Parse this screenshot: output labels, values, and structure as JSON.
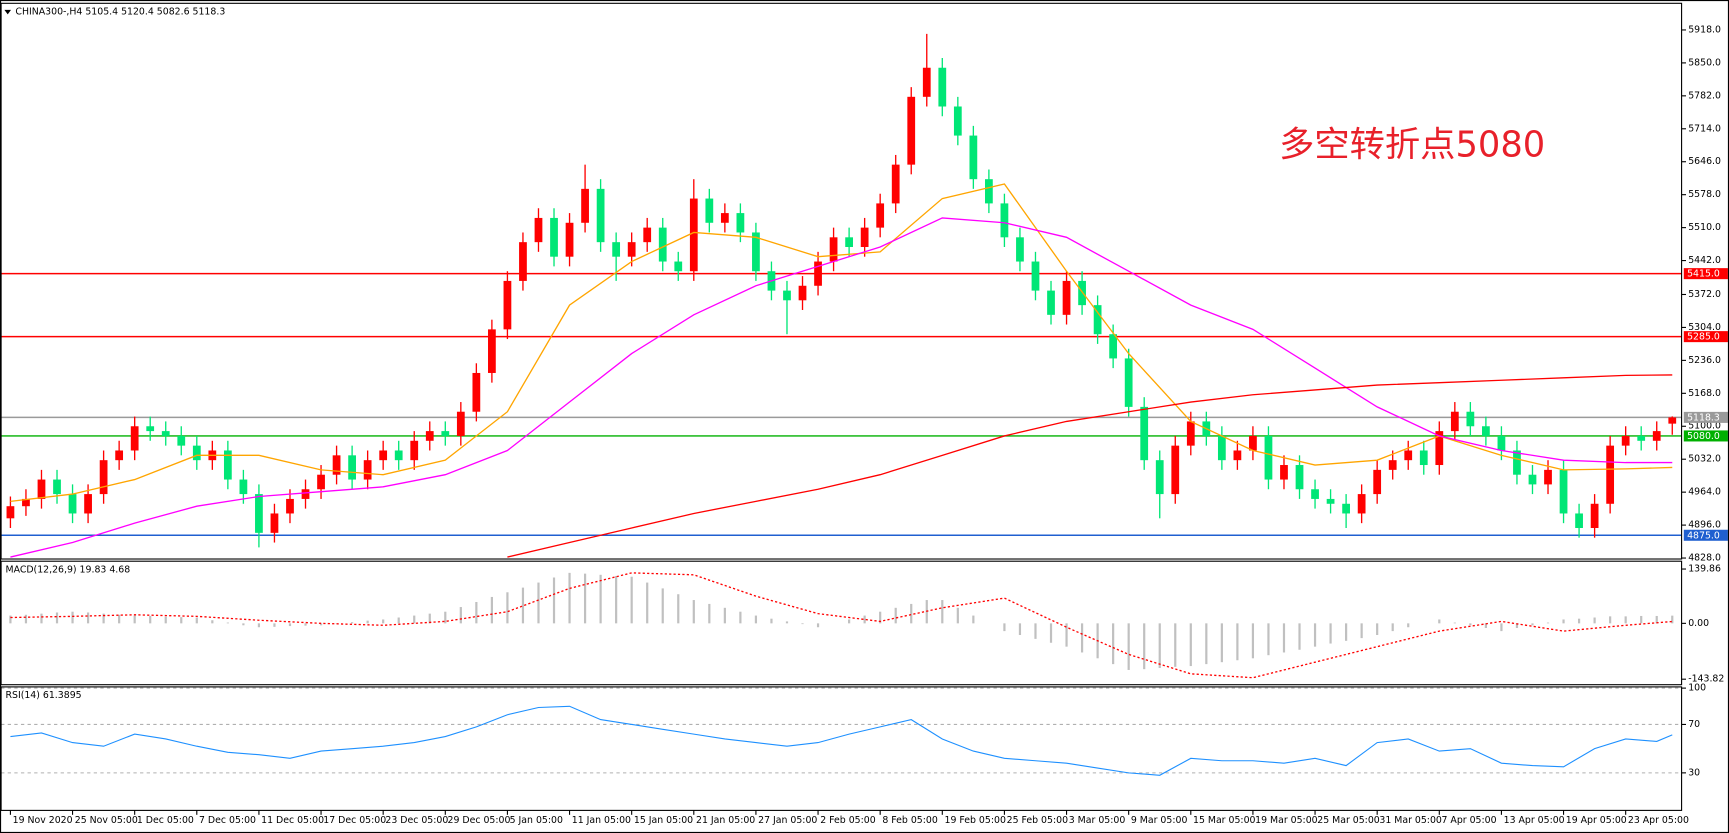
{
  "chart_data": [
    {
      "type": "candlestick",
      "title": "CHINA300-,H4  5105.4 5120.4 5082.6 5118.3",
      "annotation": "多空转折点5080",
      "xlim": [
        -0.6,
        107.6
      ],
      "ylim": [
        4826,
        5973
      ],
      "yticks": [
        {
          "value": 4828,
          "label": "4828.0"
        },
        {
          "value": 4896,
          "label": "4896.0"
        },
        {
          "value": 4964,
          "label": "4964.0"
        },
        {
          "value": 5032,
          "label": "5032.0"
        },
        {
          "value": 5100,
          "label": "5100.0"
        },
        {
          "value": 5168,
          "label": "5168.0"
        },
        {
          "value": 5236,
          "label": "5236.0"
        },
        {
          "value": 5304,
          "label": "5304.0"
        },
        {
          "value": 5372,
          "label": "5372.0"
        },
        {
          "value": 5442,
          "label": "5442.0"
        },
        {
          "value": 5510,
          "label": "5510.0"
        },
        {
          "value": 5578,
          "label": "5578.0"
        },
        {
          "value": 5646,
          "label": "5646.0"
        },
        {
          "value": 5714,
          "label": "5714.0"
        },
        {
          "value": 5782,
          "label": "5782.0"
        },
        {
          "value": 5850,
          "label": "5850.0"
        },
        {
          "value": 5918,
          "label": "5918.0"
        }
      ],
      "grid": false,
      "up_color": "#ff0000",
      "down_color": "#00e676",
      "open": [
        4910,
        4935,
        4950,
        4990,
        4960,
        4920,
        4960,
        5030,
        5050,
        5100,
        5090,
        5080,
        5060,
        5030,
        5050,
        4990,
        4960,
        4880,
        4920,
        4950,
        4970,
        5000,
        5040,
        4990,
        5030,
        5050,
        5030,
        5070,
        5090,
        5080,
        5130,
        5210,
        5300,
        5400,
        5480,
        5530,
        5450,
        5520,
        5590,
        5480,
        5450,
        5480,
        5510,
        5440,
        5420,
        5570,
        5520,
        5540,
        5500,
        5420,
        5380,
        5360,
        5390,
        5440,
        5490,
        5470,
        5510,
        5560,
        5640,
        5780,
        5840,
        5760,
        5700,
        5610,
        5560,
        5490,
        5440,
        5380,
        5330,
        5400,
        5350,
        5290,
        5240,
        5140,
        5030,
        4960,
        5060,
        5110,
        5080,
        5030,
        5050,
        5080,
        4990,
        5020,
        4970,
        4950,
        4940,
        4920,
        4960,
        5010,
        5030,
        5050,
        5020,
        5090,
        5130,
        5100,
        5080,
        5050,
        5000,
        4980,
        5010,
        4920,
        4890,
        4940,
        5060,
        5080,
        5070,
        5105.4
      ],
      "high": [
        4955,
        4970,
        5010,
        5010,
        4980,
        4980,
        5050,
        5070,
        5120,
        5120,
        5110,
        5100,
        5080,
        5070,
        5070,
        5010,
        4980,
        4940,
        4970,
        4990,
        5020,
        5060,
        5060,
        5050,
        5070,
        5070,
        5090,
        5110,
        5110,
        5150,
        5230,
        5320,
        5420,
        5500,
        5550,
        5550,
        5540,
        5640,
        5610,
        5500,
        5500,
        5530,
        5530,
        5460,
        5610,
        5590,
        5560,
        5560,
        5520,
        5440,
        5400,
        5410,
        5460,
        5510,
        5510,
        5530,
        5580,
        5660,
        5800,
        5910,
        5860,
        5780,
        5720,
        5630,
        5580,
        5510,
        5460,
        5400,
        5420,
        5420,
        5370,
        5310,
        5260,
        5160,
        5050,
        5080,
        5130,
        5130,
        5100,
        5070,
        5100,
        5100,
        5040,
        5040,
        4990,
        4970,
        4960,
        4980,
        5030,
        5050,
        5070,
        5070,
        5110,
        5150,
        5150,
        5120,
        5100,
        5070,
        5020,
        5030,
        5030,
        4940,
        4960,
        5080,
        5100,
        5100,
        5110,
        5120.4
      ],
      "low": [
        4890,
        4915,
        4930,
        4940,
        4900,
        4900,
        4940,
        5010,
        5030,
        5070,
        5060,
        5040,
        5010,
        5010,
        4970,
        4940,
        4850,
        4860,
        4900,
        4930,
        4950,
        4980,
        4970,
        4970,
        5010,
        5010,
        5010,
        5050,
        5060,
        5060,
        5110,
        5190,
        5280,
        5380,
        5460,
        5430,
        5430,
        5500,
        5460,
        5400,
        5430,
        5460,
        5420,
        5400,
        5400,
        5500,
        5500,
        5480,
        5400,
        5360,
        5290,
        5340,
        5370,
        5420,
        5450,
        5450,
        5490,
        5540,
        5620,
        5760,
        5740,
        5680,
        5590,
        5540,
        5470,
        5420,
        5360,
        5310,
        5310,
        5330,
        5270,
        5220,
        5120,
        5010,
        4910,
        4940,
        5040,
        5060,
        5010,
        5010,
        5030,
        4970,
        4970,
        4950,
        4930,
        4920,
        4890,
        4900,
        4940,
        4990,
        5010,
        5000,
        5000,
        5070,
        5080,
        5060,
        5030,
        4980,
        4960,
        4960,
        4900,
        4870,
        4870,
        4920,
        5040,
        5050,
        5050,
        5082.6
      ],
      "close": [
        4935,
        4950,
        4990,
        4960,
        4920,
        4960,
        5030,
        5050,
        5100,
        5090,
        5080,
        5060,
        5030,
        5050,
        4990,
        4960,
        4880,
        4920,
        4950,
        4970,
        5000,
        5040,
        4990,
        5030,
        5050,
        5030,
        5070,
        5090,
        5080,
        5130,
        5210,
        5300,
        5400,
        5480,
        5530,
        5450,
        5520,
        5590,
        5480,
        5450,
        5480,
        5510,
        5440,
        5420,
        5570,
        5520,
        5540,
        5500,
        5420,
        5380,
        5360,
        5390,
        5440,
        5490,
        5470,
        5510,
        5560,
        5640,
        5780,
        5840,
        5760,
        5700,
        5610,
        5560,
        5490,
        5440,
        5380,
        5330,
        5400,
        5350,
        5290,
        5240,
        5140,
        5030,
        4960,
        5060,
        5110,
        5080,
        5030,
        5050,
        5080,
        4990,
        5020,
        4970,
        4950,
        4940,
        4920,
        4960,
        5010,
        5030,
        5050,
        5020,
        5090,
        5130,
        5100,
        5080,
        5050,
        5000,
        4980,
        5010,
        4920,
        4890,
        4940,
        5060,
        5080,
        5070,
        5090,
        5118.3
      ],
      "series": [
        {
          "color": "#ffa500",
          "x": [
            0,
            4,
            8,
            12,
            16,
            20,
            24,
            28,
            32,
            36,
            40,
            44,
            48,
            52,
            56,
            60,
            64,
            68,
            72,
            76,
            80,
            84,
            88,
            92,
            96,
            100,
            104,
            107
          ],
          "values": [
            4945,
            4960,
            4990,
            5040,
            5040,
            5010,
            5000,
            5030,
            5130,
            5350,
            5440,
            5500,
            5490,
            5450,
            5460,
            5570,
            5600,
            5420,
            5250,
            5110,
            5050,
            5020,
            5030,
            5080,
            5040,
            5010,
            5012,
            5015
          ]
        },
        {
          "color": "#ff00ff",
          "x": [
            0,
            4,
            8,
            12,
            16,
            20,
            24,
            28,
            32,
            36,
            40,
            44,
            48,
            52,
            56,
            60,
            64,
            68,
            72,
            76,
            80,
            84,
            88,
            92,
            96,
            100,
            104,
            107
          ],
          "values": [
            4830,
            4860,
            4900,
            4935,
            4955,
            4965,
            4975,
            5000,
            5050,
            5150,
            5250,
            5330,
            5390,
            5430,
            5470,
            5530,
            5520,
            5490,
            5420,
            5350,
            5300,
            5220,
            5140,
            5080,
            5050,
            5030,
            5025,
            5025
          ]
        },
        {
          "color": "#ff0000",
          "x": [
            0,
            4,
            8,
            12,
            16,
            20,
            24,
            28,
            32,
            36,
            40,
            44,
            48,
            52,
            56,
            60,
            64,
            68,
            72,
            76,
            80,
            84,
            88,
            92,
            96,
            100,
            104,
            107
          ],
          "values": [
            null,
            null,
            null,
            null,
            null,
            null,
            null,
            null,
            4830,
            4860,
            4890,
            4920,
            4945,
            4970,
            5000,
            5040,
            5080,
            5110,
            5130,
            5150,
            5165,
            5175,
            5185,
            5190,
            5195,
            5200,
            5205,
            5206
          ]
        }
      ],
      "levels": [
        {
          "value": 5415,
          "label": "5415.0",
          "color": "#ff0000"
        },
        {
          "value": 5285,
          "label": "5285.0",
          "color": "#ff0000"
        },
        {
          "value": 5118.3,
          "label": "5118.3",
          "color": "#9a9a9a"
        },
        {
          "value": 5080,
          "label": "5080.0",
          "color": "#00b000"
        },
        {
          "value": 4875,
          "label": "4875.0",
          "color": "#1f5fd0"
        }
      ]
    },
    {
      "type": "macd",
      "title": "MACD(12,26,9) 19.83 4.68",
      "xlim": [
        -0.6,
        107.6
      ],
      "ylim": [
        -158,
        160
      ],
      "yticks": [
        {
          "value": 139.86,
          "label": "139.86"
        },
        {
          "value": 0,
          "label": "0.00"
        },
        {
          "value": -143.82,
          "label": "-143.82"
        }
      ],
      "color": "#c0c0c0",
      "values": [
        20,
        22,
        25,
        28,
        30,
        28,
        25,
        22,
        20,
        19,
        17,
        16,
        15,
        8,
        2,
        -5,
        -10,
        -9,
        -7,
        -6,
        -5,
        -1,
        3,
        7,
        10,
        15,
        20,
        25,
        30,
        42,
        55,
        68,
        80,
        92,
        105,
        118,
        130,
        128,
        125,
        122,
        120,
        105,
        90,
        75,
        60,
        50,
        40,
        30,
        20,
        12,
        5,
        -2,
        -10,
        0,
        10,
        20,
        30,
        40,
        50,
        60,
        60,
        40,
        20,
        0,
        -20,
        -30,
        -40,
        -50,
        -60,
        -75,
        -90,
        -105,
        -120,
        -118,
        -115,
        -112,
        -110,
        -105,
        -100,
        -95,
        -90,
        -82,
        -75,
        -68,
        -60,
        -52,
        -45,
        -38,
        -30,
        -20,
        -10,
        0,
        10,
        2,
        -5,
        -12,
        -20,
        -12,
        -5,
        2,
        10,
        12,
        15,
        18,
        18,
        19,
        19,
        19.83
      ],
      "series": [
        {
          "color": "#ff0000",
          "dashed": true,
          "x": [
            0,
            4,
            8,
            12,
            16,
            20,
            24,
            28,
            32,
            36,
            40,
            44,
            48,
            52,
            56,
            60,
            64,
            68,
            72,
            76,
            80,
            84,
            88,
            92,
            96,
            100,
            104,
            107
          ],
          "values": [
            15,
            18,
            22,
            18,
            8,
            0,
            -5,
            5,
            30,
            90,
            130,
            125,
            70,
            25,
            5,
            40,
            65,
            -10,
            -80,
            -130,
            -140,
            -100,
            -60,
            -20,
            5,
            -20,
            -5,
            4.68
          ]
        }
      ]
    },
    {
      "type": "line",
      "title": "RSI(14) 61.3895",
      "xlim": [
        -0.6,
        107.6
      ],
      "ylim": [
        -1,
        101
      ],
      "yticks": [
        100,
        70,
        30
      ],
      "grid": true,
      "series": [
        {
          "color": "#1e90ff",
          "x": [
            0,
            2,
            4,
            6,
            8,
            10,
            12,
            14,
            16,
            18,
            20,
            22,
            24,
            26,
            28,
            30,
            32,
            34,
            36,
            38,
            40,
            42,
            44,
            46,
            48,
            50,
            52,
            54,
            56,
            58,
            60,
            62,
            64,
            66,
            68,
            70,
            72,
            74,
            76,
            78,
            80,
            82,
            84,
            86,
            88,
            90,
            92,
            94,
            96,
            98,
            100,
            102,
            104,
            106,
            107
          ],
          "values": [
            60,
            63,
            55,
            52,
            62,
            58,
            52,
            47,
            45,
            42,
            48,
            50,
            52,
            55,
            60,
            68,
            78,
            84,
            85,
            74,
            70,
            66,
            62,
            58,
            55,
            52,
            55,
            62,
            68,
            74,
            58,
            48,
            42,
            40,
            38,
            34,
            30,
            28,
            42,
            40,
            40,
            38,
            42,
            36,
            55,
            58,
            48,
            50,
            38,
            36,
            35,
            50,
            58,
            56,
            61.3895
          ]
        }
      ],
      "xticks": [
        {
          "value": 0,
          "label": "19 Nov 2020"
        },
        {
          "value": 4,
          "label": "25 Nov 05:00"
        },
        {
          "value": 8,
          "label": "1 Dec 05:00"
        },
        {
          "value": 12,
          "label": "7 Dec 05:00"
        },
        {
          "value": 16,
          "label": "11 Dec 05:00"
        },
        {
          "value": 20,
          "label": "17 Dec 05:00"
        },
        {
          "value": 24,
          "label": "23 Dec 05:00"
        },
        {
          "value": 28,
          "label": "29 Dec 05:00"
        },
        {
          "value": 32,
          "label": "5 Jan 05:00"
        },
        {
          "value": 36,
          "label": "11 Jan 05:00"
        },
        {
          "value": 40,
          "label": "15 Jan 05:00"
        },
        {
          "value": 44,
          "label": "21 Jan 05:00"
        },
        {
          "value": 48,
          "label": "27 Jan 05:00"
        },
        {
          "value": 52,
          "label": "2 Feb 05:00"
        },
        {
          "value": 56,
          "label": "8 Feb 05:00"
        },
        {
          "value": 60,
          "label": "19 Feb 05:00"
        },
        {
          "value": 64,
          "label": "25 Feb 05:00"
        },
        {
          "value": 68,
          "label": "3 Mar 05:00"
        },
        {
          "value": 72,
          "label": "9 Mar 05:00"
        },
        {
          "value": 76,
          "label": "15 Mar 05:00"
        },
        {
          "value": 80,
          "label": "19 Mar 05:00"
        },
        {
          "value": 84,
          "label": "25 Mar 05:00"
        },
        {
          "value": 88,
          "label": "31 Mar 05:00"
        },
        {
          "value": 92,
          "label": "7 Apr 05:00"
        },
        {
          "value": 96,
          "label": "13 Apr 05:00"
        },
        {
          "value": 100,
          "label": "19 Apr 05:00"
        },
        {
          "value": 104,
          "label": "23 Apr 05:00"
        }
      ]
    }
  ]
}
